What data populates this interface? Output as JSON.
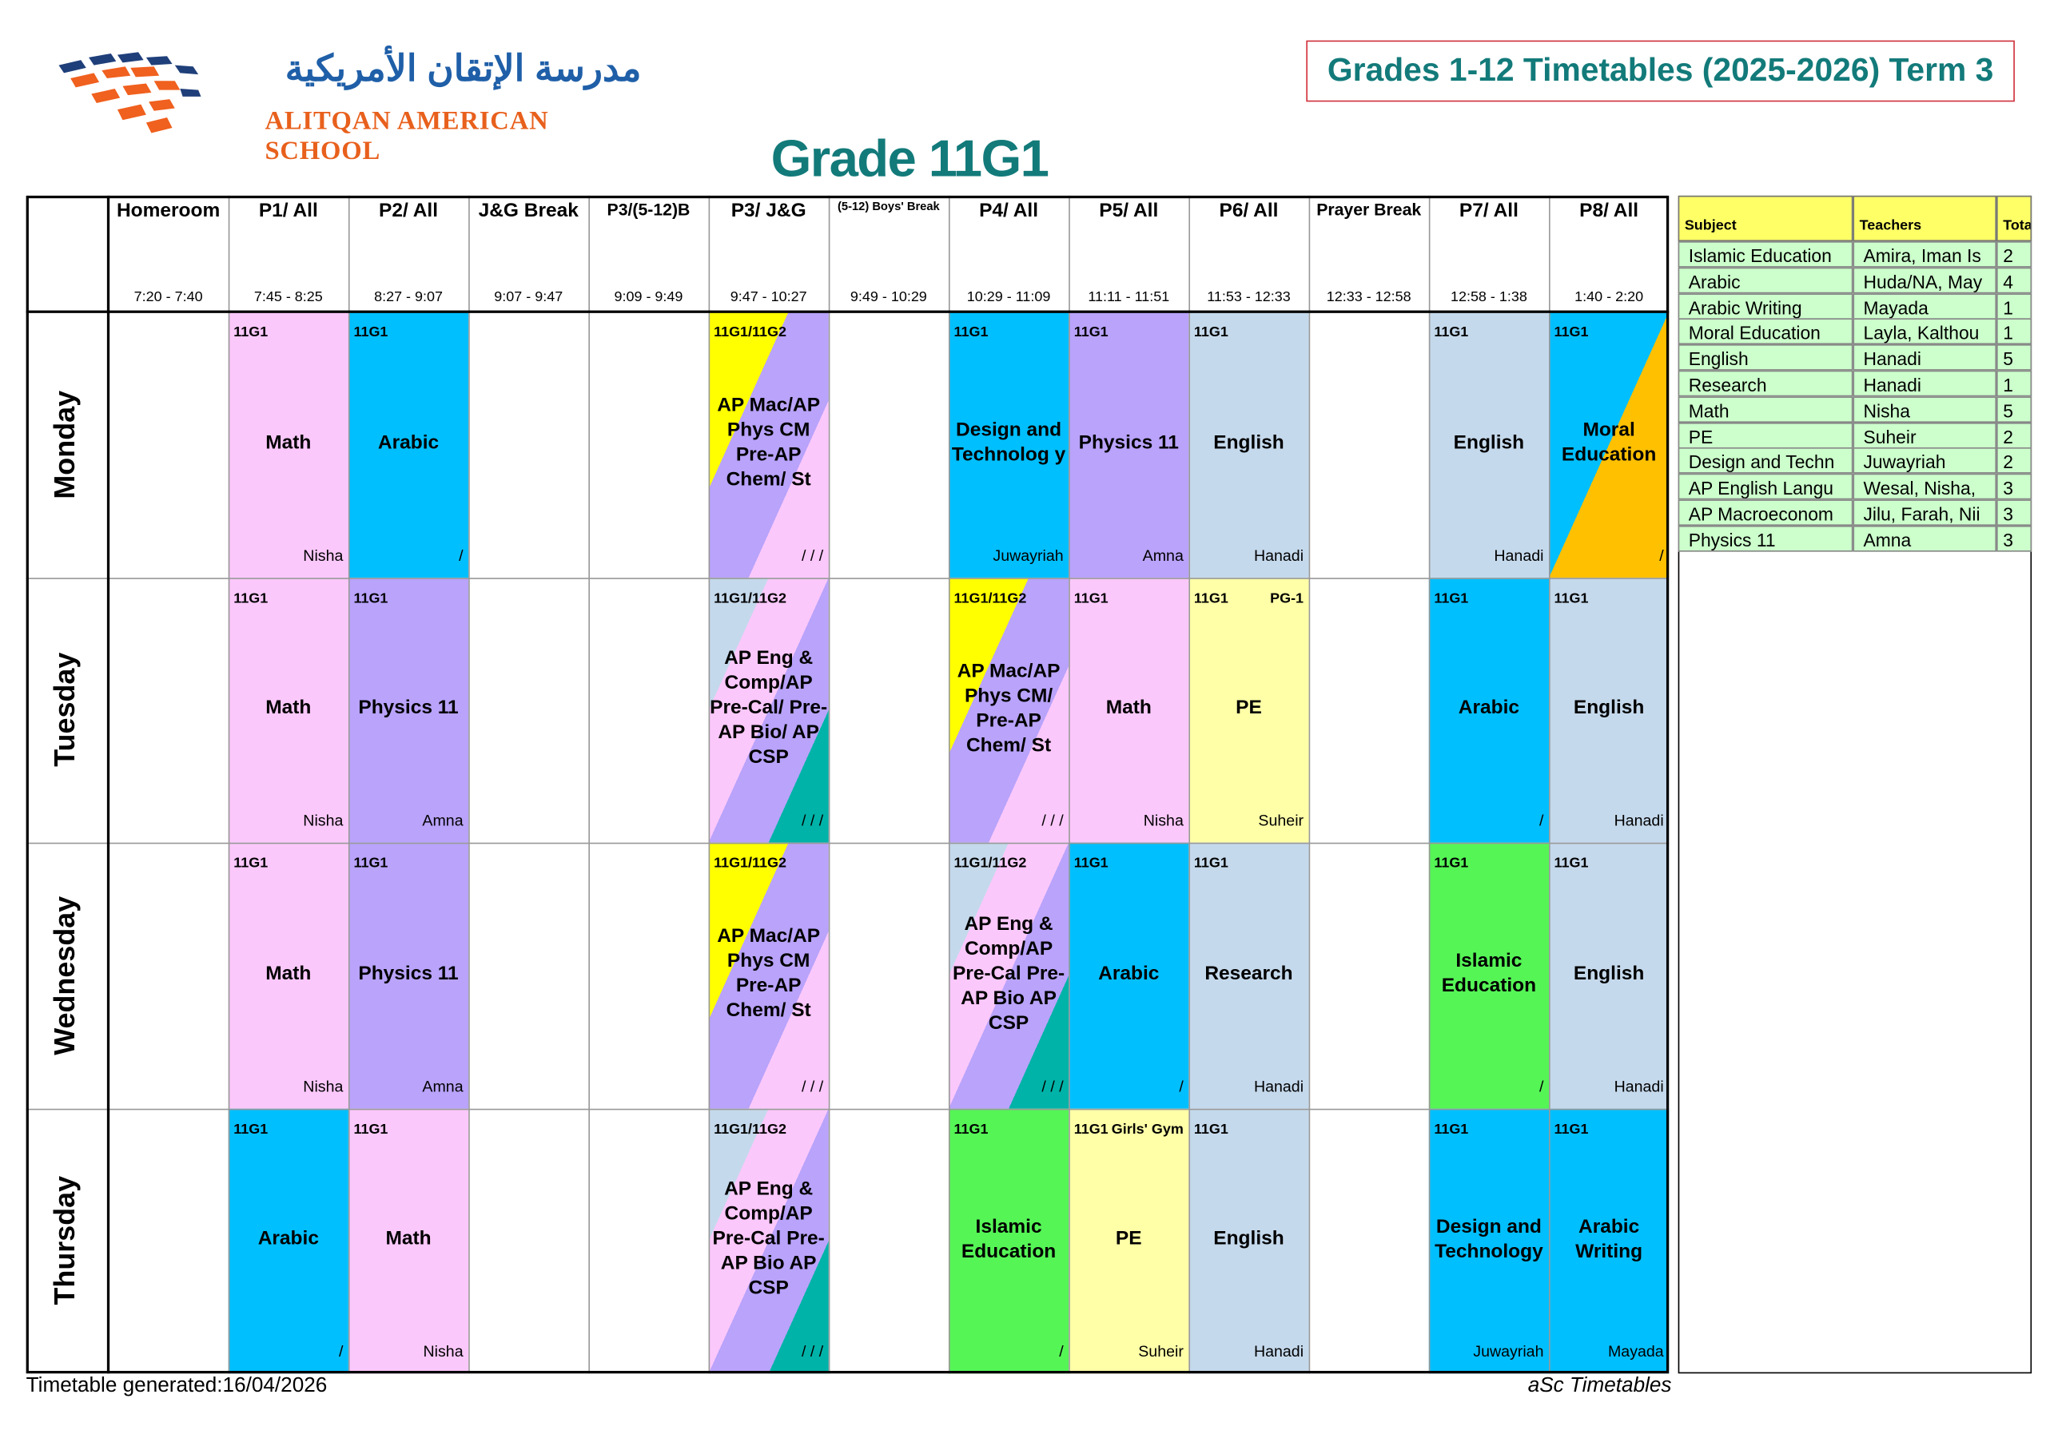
{
  "header": {
    "school_name_ar": "مدرسة الإتقان الأمريكية",
    "school_name_en": "ALITQAN AMERICAN SCHOOL",
    "term_title": "Grades 1-12 Timetables (2025-2026) Term 3",
    "grade_title": "Grade 11G1"
  },
  "periods": [
    {
      "name": "Homeroom",
      "time": "7:20 - 7:40"
    },
    {
      "name": "P1/ All",
      "time": "7:45 - 8:25"
    },
    {
      "name": "P2/ All",
      "time": "8:27 - 9:07"
    },
    {
      "name": "J&G Break",
      "time": "9:07 - 9:47"
    },
    {
      "name": "P3/(5-12)B",
      "time": "9:09 - 9:49"
    },
    {
      "name": "P3/ J&G",
      "time": "9:47 - 10:27"
    },
    {
      "name": "(5-12) Boys' Break",
      "time": "9:49 - 10:29"
    },
    {
      "name": "P4/ All",
      "time": "10:29 - 11:09"
    },
    {
      "name": "P5/ All",
      "time": "11:11 - 11:51"
    },
    {
      "name": "P6/ All",
      "time": "11:53 - 12:33"
    },
    {
      "name": "Prayer Break",
      "time": "12:33 - 12:58"
    },
    {
      "name": "P7/ All",
      "time": "12:58 - 1:38"
    },
    {
      "name": "P8/ All",
      "time": "1:40 - 2:20"
    }
  ],
  "days": [
    {
      "name": "Monday",
      "cells": [
        null,
        {
          "group": "11G1",
          "subject": "Math",
          "teacher": "Nisha",
          "colors": [
            "#fbc8fb"
          ]
        },
        {
          "group": "11G1",
          "subject": "Arabic",
          "teacher": "/",
          "colors": [
            "#00bfff"
          ]
        },
        null,
        null,
        {
          "group": "11G1/11G2",
          "subject": "AP Mac/AP Phys CM Pre-AP Chem/ St",
          "teacher": "/ / /",
          "colors": [
            "#ffff00",
            "#b9a3fb",
            "#fbc8fb"
          ]
        },
        null,
        {
          "group": "11G1",
          "subject": "Design and Technolog y",
          "teacher": "Juwayriah",
          "colors": [
            "#00bfff"
          ]
        },
        {
          "group": "11G1",
          "subject": "Physics 11",
          "teacher": "Amna",
          "colors": [
            "#b9a3fb"
          ]
        },
        {
          "group": "11G1",
          "subject": "English",
          "teacher": "Hanadi",
          "colors": [
            "#c5d9ec"
          ]
        },
        null,
        {
          "group": "11G1",
          "subject": "English",
          "teacher": "Hanadi",
          "colors": [
            "#c5d9ec"
          ]
        },
        {
          "group": "11G1",
          "subject": "Moral Education",
          "teacher": "/",
          "colors": [
            "#00bfff",
            "#ffc000"
          ]
        }
      ]
    },
    {
      "name": "Tuesday",
      "cells": [
        null,
        {
          "group": "11G1",
          "subject": "Math",
          "teacher": "Nisha",
          "colors": [
            "#fbc8fb"
          ]
        },
        {
          "group": "11G1",
          "subject": "Physics 11",
          "teacher": "Amna",
          "colors": [
            "#b9a3fb"
          ]
        },
        null,
        null,
        {
          "group": "11G1/11G2",
          "subject": "AP Eng & Comp/AP Pre-Cal/ Pre-AP Bio/ AP CSP",
          "teacher": "/ / /",
          "colors": [
            "#c5d9ec",
            "#fbc8fb",
            "#b9a3fb",
            "#00b3a8"
          ]
        },
        null,
        {
          "group": "11G1/11G2",
          "subject": "AP Mac/AP Phys CM/ Pre-AP Chem/ St",
          "teacher": "/ / /",
          "colors": [
            "#ffff00",
            "#b9a3fb",
            "#fbc8fb"
          ]
        },
        {
          "group": "11G1",
          "subject": "Math",
          "teacher": "Nisha",
          "colors": [
            "#fbc8fb"
          ]
        },
        {
          "group": "11G1",
          "room": "PG-1",
          "subject": "PE",
          "teacher": "Suheir",
          "colors": [
            "#ffffa8"
          ]
        },
        null,
        {
          "group": "11G1",
          "subject": "Arabic",
          "teacher": "/",
          "colors": [
            "#00bfff"
          ]
        },
        {
          "group": "11G1",
          "subject": "English",
          "teacher": "Hanadi",
          "colors": [
            "#c5d9ec"
          ]
        }
      ]
    },
    {
      "name": "Wednesday",
      "cells": [
        null,
        {
          "group": "11G1",
          "subject": "Math",
          "teacher": "Nisha",
          "colors": [
            "#fbc8fb"
          ]
        },
        {
          "group": "11G1",
          "subject": "Physics 11",
          "teacher": "Amna",
          "colors": [
            "#b9a3fb"
          ]
        },
        null,
        null,
        {
          "group": "11G1/11G2",
          "subject": "AP Mac/AP Phys CM Pre-AP Chem/ St",
          "teacher": "/ / /",
          "colors": [
            "#ffff00",
            "#b9a3fb",
            "#fbc8fb"
          ]
        },
        null,
        {
          "group": "11G1/11G2",
          "subject": "AP Eng & Comp/AP Pre-Cal Pre-AP Bio AP CSP",
          "teacher": "/ / /",
          "colors": [
            "#c5d9ec",
            "#fbc8fb",
            "#b9a3fb",
            "#00b3a8"
          ]
        },
        {
          "group": "11G1",
          "subject": "Arabic",
          "teacher": "/",
          "colors": [
            "#00bfff"
          ]
        },
        {
          "group": "11G1",
          "subject": "Research",
          "teacher": "Hanadi",
          "colors": [
            "#c5d9ec"
          ]
        },
        null,
        {
          "group": "11G1",
          "subject": "Islamic Education",
          "teacher": "/",
          "colors": [
            "#55f556"
          ]
        },
        {
          "group": "11G1",
          "subject": "English",
          "teacher": "Hanadi",
          "colors": [
            "#c5d9ec"
          ]
        }
      ]
    },
    {
      "name": "Thursday",
      "cells": [
        null,
        {
          "group": "11G1",
          "subject": "Arabic",
          "teacher": "/",
          "colors": [
            "#00bfff"
          ]
        },
        {
          "group": "11G1",
          "subject": "Math",
          "teacher": "Nisha",
          "colors": [
            "#fbc8fb"
          ]
        },
        null,
        null,
        {
          "group": "11G1/11G2",
          "subject": "AP Eng & Comp/AP Pre-Cal Pre-AP Bio AP CSP",
          "teacher": "/ / /",
          "colors": [
            "#c5d9ec",
            "#fbc8fb",
            "#b9a3fb",
            "#00b3a8"
          ]
        },
        null,
        {
          "group": "11G1",
          "subject": "Islamic Education",
          "teacher": "/",
          "colors": [
            "#55f556"
          ]
        },
        {
          "group": "11G1",
          "room": "Girls' Gym",
          "subject": "PE",
          "teacher": "Suheir",
          "colors": [
            "#ffffa8"
          ]
        },
        {
          "group": "11G1",
          "subject": "English",
          "teacher": "Hanadi",
          "colors": [
            "#c5d9ec"
          ]
        },
        null,
        {
          "group": "11G1",
          "subject": "Design and Technology",
          "teacher": "Juwayriah",
          "colors": [
            "#00bfff"
          ]
        },
        {
          "group": "11G1",
          "subject": "Arabic Writing",
          "teacher": "Mayada",
          "colors": [
            "#00bfff"
          ]
        }
      ]
    }
  ],
  "summary": {
    "headers": [
      "Subject",
      "Teachers",
      "Tota"
    ],
    "rows": [
      [
        "Islamic Education",
        "Amira, Iman Is",
        2
      ],
      [
        "Arabic",
        "Huda/NA, May",
        4
      ],
      [
        "Arabic Writing",
        "Mayada",
        1
      ],
      [
        "Moral Education",
        "Layla, Kalthou",
        1
      ],
      [
        "English",
        "Hanadi",
        5
      ],
      [
        "Research",
        "Hanadi",
        1
      ],
      [
        "Math",
        "Nisha",
        5
      ],
      [
        "PE",
        "Suheir",
        2
      ],
      [
        "Design and Techn",
        "Juwayriah",
        2
      ],
      [
        "AP English Langu",
        "Wesal, Nisha,",
        3
      ],
      [
        "AP Macroeconom",
        "Jilu, Farah, Nii",
        3
      ],
      [
        "Physics 11",
        "Amna",
        3
      ]
    ]
  },
  "footer": {
    "generated": "Timetable generated:16/04/2026",
    "software": "aSc Timetables"
  }
}
